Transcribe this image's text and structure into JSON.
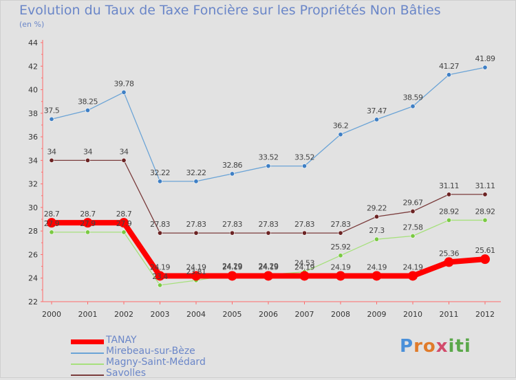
{
  "title": "Evolution du Taux de Taxe Foncière sur les Propriétés Non Bâties",
  "subtitle": "(en %)",
  "logo": {
    "text": "Proxiti",
    "letters": [
      "P",
      "r",
      "o",
      "x",
      "i",
      "t",
      "i"
    ],
    "colors": [
      "#4a90d9",
      "#e07b2a",
      "#e07b2a",
      "#d24b6b",
      "#5aa84a",
      "#5aa84a",
      "#5aa84a"
    ]
  },
  "chart_data": {
    "type": "line",
    "title": "Evolution du Taux de Taxe Foncière sur les Propriétés Non Bâties",
    "ylabel": "(en %)",
    "xlabel": "",
    "ylim": [
      22,
      44
    ],
    "yticks": [
      22,
      24,
      26,
      28,
      30,
      32,
      34,
      36,
      38,
      40,
      42,
      44
    ],
    "categories": [
      "2000",
      "2001",
      "2002",
      "2003",
      "2004",
      "2005",
      "2006",
      "2007",
      "2008",
      "2009",
      "2010",
      "2011",
      "2012"
    ],
    "grid": false,
    "legend_position": "bottom-left",
    "series": [
      {
        "name": "TANAY",
        "color": "#ff0000",
        "values": [
          28.7,
          28.7,
          28.7,
          24.19,
          24.19,
          24.19,
          24.19,
          24.19,
          24.19,
          24.19,
          24.19,
          25.36,
          25.61
        ],
        "labels": [
          "28.7",
          "28.7",
          "28.7",
          "24.19",
          "24.19",
          "24.19",
          "24.19",
          "24.19",
          "24.19",
          "24.19",
          "24.19",
          "25.36",
          "25.61"
        ]
      },
      {
        "name": "Mirebeau-sur-Bèze",
        "color": "#6aa3d6",
        "values": [
          37.5,
          38.25,
          39.78,
          32.22,
          32.22,
          32.86,
          33.52,
          33.52,
          36.2,
          37.47,
          38.59,
          41.27,
          41.89
        ],
        "labels": [
          "37.5",
          "38.25",
          "39.78",
          "32.22",
          "32.22",
          "32.86",
          "33.52",
          "33.52",
          "36.2",
          "37.47",
          "38.59",
          "41.27",
          "41.89"
        ]
      },
      {
        "name": "Magny-Saint-Médard",
        "color": "#a6e07c",
        "values": [
          27.9,
          27.9,
          27.9,
          23.4,
          23.81,
          24.29,
          24.29,
          24.53,
          25.92,
          27.3,
          27.58,
          28.92,
          28.92
        ],
        "labels": [
          "27.9",
          "27.9",
          "27.9",
          "23.4",
          "23.81",
          "24.29",
          "24.29",
          "24.53",
          "25.92",
          "27.3",
          "27.58",
          "28.92",
          "28.92"
        ]
      },
      {
        "name": "Savolles",
        "color": "#7a3b3b",
        "values": [
          34,
          34,
          34,
          27.83,
          27.83,
          27.83,
          27.83,
          27.83,
          27.83,
          29.22,
          29.67,
          31.11,
          31.11
        ],
        "labels": [
          "34",
          "34",
          "34",
          "27.83",
          "27.83",
          "27.83",
          "27.83",
          "27.83",
          "27.83",
          "29.22",
          "29.67",
          "31.11",
          "31.11"
        ]
      }
    ]
  }
}
